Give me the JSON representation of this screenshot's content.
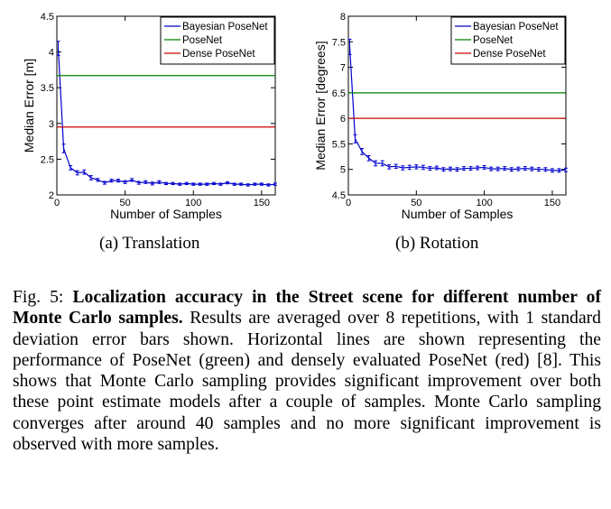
{
  "charts": [
    {
      "id": "translation",
      "subcaption": "(a) Translation",
      "chart_data": {
        "type": "line",
        "xlabel": "Number of Samples",
        "ylabel": "Median Error [m]",
        "xlim": [
          0,
          160
        ],
        "ylim": [
          2,
          4.5
        ],
        "xticks": [
          0,
          50,
          100,
          150
        ],
        "yticks": [
          2,
          2.5,
          3,
          3.5,
          4,
          4.5
        ],
        "legend_position": "top-right",
        "series": [
          {
            "name": "Bayesian PoseNet",
            "color": "#0000cc",
            "x": [
              1,
              5,
              10,
              15,
              20,
              25,
              30,
              35,
              40,
              45,
              50,
              55,
              60,
              65,
              70,
              75,
              80,
              85,
              90,
              95,
              100,
              105,
              110,
              115,
              120,
              125,
              130,
              135,
              140,
              145,
              150,
              155,
              160
            ],
            "y": [
              4.05,
              2.65,
              2.38,
              2.31,
              2.32,
              2.24,
              2.21,
              2.17,
              2.2,
              2.2,
              2.18,
              2.21,
              2.17,
              2.18,
              2.16,
              2.18,
              2.16,
              2.16,
              2.15,
              2.16,
              2.15,
              2.15,
              2.15,
              2.16,
              2.15,
              2.17,
              2.15,
              2.15,
              2.14,
              2.15,
              2.15,
              2.14,
              2.15
            ],
            "err": [
              0.1,
              0.06,
              0.03,
              0.03,
              0.03,
              0.03,
              0.02,
              0.02,
              0.02,
              0.02,
              0.02,
              0.02,
              0.02,
              0.02,
              0.02,
              0.02,
              0.015,
              0.015,
              0.015,
              0.015,
              0.015,
              0.015,
              0.015,
              0.015,
              0.015,
              0.015,
              0.015,
              0.015,
              0.015,
              0.015,
              0.015,
              0.015,
              0.015
            ]
          },
          {
            "name": "PoseNet",
            "color": "#008000",
            "constant": 3.67
          },
          {
            "name": "Dense PoseNet",
            "color": "#cc0000",
            "constant": 2.95
          }
        ]
      }
    },
    {
      "id": "rotation",
      "subcaption": "(b) Rotation",
      "chart_data": {
        "type": "line",
        "xlabel": "Number of Samples",
        "ylabel": "Median Error [degrees]",
        "xlim": [
          0,
          160
        ],
        "ylim": [
          4.5,
          8
        ],
        "xticks": [
          0,
          50,
          100,
          150
        ],
        "yticks": [
          4.5,
          5,
          5.5,
          6,
          6.5,
          7,
          7.5,
          8
        ],
        "legend_position": "top-right",
        "series": [
          {
            "name": "Bayesian PoseNet",
            "color": "#0000cc",
            "x": [
              1,
              5,
              10,
              15,
              20,
              25,
              30,
              35,
              40,
              45,
              50,
              55,
              60,
              65,
              70,
              75,
              80,
              85,
              90,
              95,
              100,
              105,
              110,
              115,
              120,
              125,
              130,
              135,
              140,
              145,
              150,
              155,
              160
            ],
            "y": [
              7.4,
              5.6,
              5.35,
              5.22,
              5.12,
              5.12,
              5.05,
              5.06,
              5.03,
              5.04,
              5.05,
              5.04,
              5.02,
              5.03,
              5.0,
              5.01,
              5.0,
              5.02,
              5.02,
              5.03,
              5.04,
              5.01,
              5.01,
              5.02,
              5.0,
              5.01,
              5.02,
              5.01,
              5.0,
              5.0,
              4.98,
              4.98,
              4.99
            ],
            "err": [
              0.15,
              0.08,
              0.06,
              0.05,
              0.05,
              0.05,
              0.04,
              0.04,
              0.04,
              0.04,
              0.04,
              0.04,
              0.035,
              0.035,
              0.035,
              0.035,
              0.035,
              0.035,
              0.035,
              0.035,
              0.035,
              0.035,
              0.035,
              0.035,
              0.035,
              0.035,
              0.035,
              0.035,
              0.035,
              0.035,
              0.035,
              0.035,
              0.035
            ]
          },
          {
            "name": "PoseNet",
            "color": "#008000",
            "constant": 6.5
          },
          {
            "name": "Dense PoseNet",
            "color": "#cc0000",
            "constant": 6.0
          }
        ]
      }
    }
  ],
  "caption": {
    "fig_label": "Fig. 5:",
    "bold_text": "Localization accuracy in the Street scene for different number of Monte Carlo samples.",
    "body_text": "Results are averaged over 8 repetitions, with 1 standard deviation error bars shown. Horizontal lines are shown representing the performance of PoseNet (green) and densely evaluated PoseNet (red) [8]. This shows that Monte Carlo sampling provides significant improvement over both these point estimate models after a couple of samples. Monte Carlo sampling converges after around 40 samples and no more significant improvement is observed with more samples."
  }
}
